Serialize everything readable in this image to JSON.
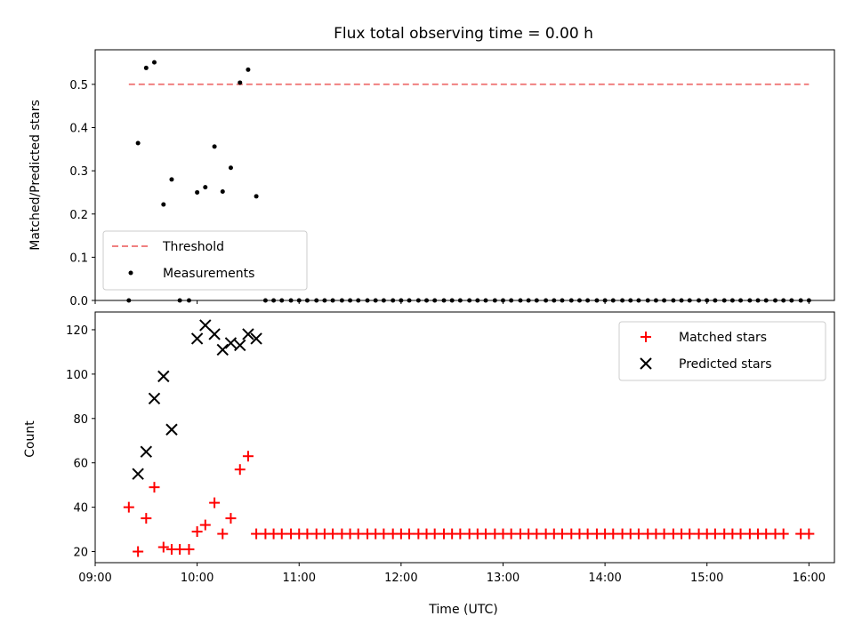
{
  "title": "Flux total observing time = 0.00 h",
  "colors": {
    "threshold": "#f08080",
    "measurements": "#000000",
    "matched": "#ff0000",
    "predicted": "#000000"
  },
  "chart_data": [
    {
      "type": "scatter",
      "ylabel": "Matched/Predicted stars",
      "ylim": [
        0,
        0.58
      ],
      "yticks": [
        "0.0",
        "0.1",
        "0.2",
        "0.3",
        "0.4",
        "0.5"
      ],
      "xlim": [
        9.0,
        16.25
      ],
      "grid": false,
      "legend_position": "lower-left",
      "threshold": {
        "name": "Threshold",
        "y": 0.5,
        "x": [
          9.33,
          16.0
        ]
      },
      "measurements": {
        "name": "Measurements",
        "x": [
          9.33,
          9.42,
          9.5,
          9.58,
          9.67,
          9.75,
          9.83,
          9.92,
          10.0,
          10.08,
          10.17,
          10.25,
          10.33,
          10.42,
          10.5,
          10.58,
          10.67,
          10.75,
          10.83,
          10.92,
          11.0,
          11.08,
          11.17,
          11.25,
          11.33,
          11.42,
          11.5,
          11.58,
          11.67,
          11.75,
          11.83,
          11.92,
          12.0,
          12.08,
          12.17,
          12.25,
          12.33,
          12.42,
          12.5,
          12.58,
          12.67,
          12.75,
          12.83,
          12.92,
          13.0,
          13.08,
          13.17,
          13.25,
          13.33,
          13.42,
          13.5,
          13.58,
          13.67,
          13.75,
          13.83,
          13.92,
          14.0,
          14.08,
          14.17,
          14.25,
          14.33,
          14.42,
          14.5,
          14.58,
          14.67,
          14.75,
          14.83,
          14.92,
          15.0,
          15.08,
          15.17,
          15.25,
          15.33,
          15.42,
          15.5,
          15.58,
          15.67,
          15.75,
          15.83,
          15.92,
          16.0
        ],
        "y": [
          0.0,
          0.364,
          0.538,
          0.551,
          0.222,
          0.28,
          0.0,
          0.0,
          0.25,
          0.262,
          0.356,
          0.252,
          0.307,
          0.504,
          0.534,
          0.241,
          0.0,
          0.0,
          0.0,
          0.0,
          0.0,
          0.0,
          0.0,
          0.0,
          0.0,
          0.0,
          0.0,
          0.0,
          0.0,
          0.0,
          0.0,
          0.0,
          0.0,
          0.0,
          0.0,
          0.0,
          0.0,
          0.0,
          0.0,
          0.0,
          0.0,
          0.0,
          0.0,
          0.0,
          0.0,
          0.0,
          0.0,
          0.0,
          0.0,
          0.0,
          0.0,
          0.0,
          0.0,
          0.0,
          0.0,
          0.0,
          0.0,
          0.0,
          0.0,
          0.0,
          0.0,
          0.0,
          0.0,
          0.0,
          0.0,
          0.0,
          0.0,
          0.0,
          0.0,
          0.0,
          0.0,
          0.0,
          0.0,
          0.0,
          0.0,
          0.0,
          0.0,
          0.0,
          0.0,
          0.0,
          0.0
        ]
      }
    },
    {
      "type": "scatter",
      "xlabel": "Time (UTC)",
      "ylabel": "Count",
      "ylim": [
        15,
        128
      ],
      "yticks": [
        "20",
        "40",
        "60",
        "80",
        "100",
        "120"
      ],
      "xlim": [
        9.0,
        16.25
      ],
      "xticks": [
        "09:00",
        "10:00",
        "11:00",
        "12:00",
        "13:00",
        "14:00",
        "15:00",
        "16:00"
      ],
      "grid": false,
      "legend_position": "upper-right",
      "matched": {
        "name": "Matched stars",
        "x": [
          9.33,
          9.42,
          9.5,
          9.58,
          9.67,
          9.75,
          9.83,
          9.92,
          10.0,
          10.08,
          10.17,
          10.25,
          10.33,
          10.42,
          10.5,
          10.58,
          10.67,
          10.75,
          10.83,
          10.92,
          11.0,
          11.08,
          11.17,
          11.25,
          11.33,
          11.42,
          11.5,
          11.58,
          11.67,
          11.75,
          11.83,
          11.92,
          12.0,
          12.08,
          12.17,
          12.25,
          12.33,
          12.42,
          12.5,
          12.58,
          12.67,
          12.75,
          12.83,
          12.92,
          13.0,
          13.08,
          13.17,
          13.25,
          13.33,
          13.42,
          13.5,
          13.58,
          13.67,
          13.75,
          13.83,
          13.92,
          14.0,
          14.08,
          14.17,
          14.25,
          14.33,
          14.42,
          14.5,
          14.58,
          14.67,
          14.75,
          14.83,
          14.92,
          15.0,
          15.08,
          15.17,
          15.25,
          15.33,
          15.42,
          15.5,
          15.58,
          15.67,
          15.75,
          15.92,
          16.0
        ],
        "y": [
          40,
          20,
          35,
          49,
          22,
          21,
          21,
          21,
          29,
          32,
          42,
          28,
          35,
          57,
          63,
          28,
          28,
          28,
          28,
          28,
          28,
          28,
          28,
          28,
          28,
          28,
          28,
          28,
          28,
          28,
          28,
          28,
          28,
          28,
          28,
          28,
          28,
          28,
          28,
          28,
          28,
          28,
          28,
          28,
          28,
          28,
          28,
          28,
          28,
          28,
          28,
          28,
          28,
          28,
          28,
          28,
          28,
          28,
          28,
          28,
          28,
          28,
          28,
          28,
          28,
          28,
          28,
          28,
          28,
          28,
          28,
          28,
          28,
          28,
          28,
          28,
          28,
          28,
          28,
          28
        ]
      },
      "predicted": {
        "name": "Predicted stars",
        "x": [
          9.42,
          9.5,
          9.58,
          9.67,
          9.75,
          10.0,
          10.08,
          10.17,
          10.25,
          10.33,
          10.42,
          10.5,
          10.58
        ],
        "y": [
          55,
          65,
          89,
          99,
          75,
          116,
          122,
          118,
          111,
          114,
          113,
          118,
          116
        ]
      }
    }
  ]
}
